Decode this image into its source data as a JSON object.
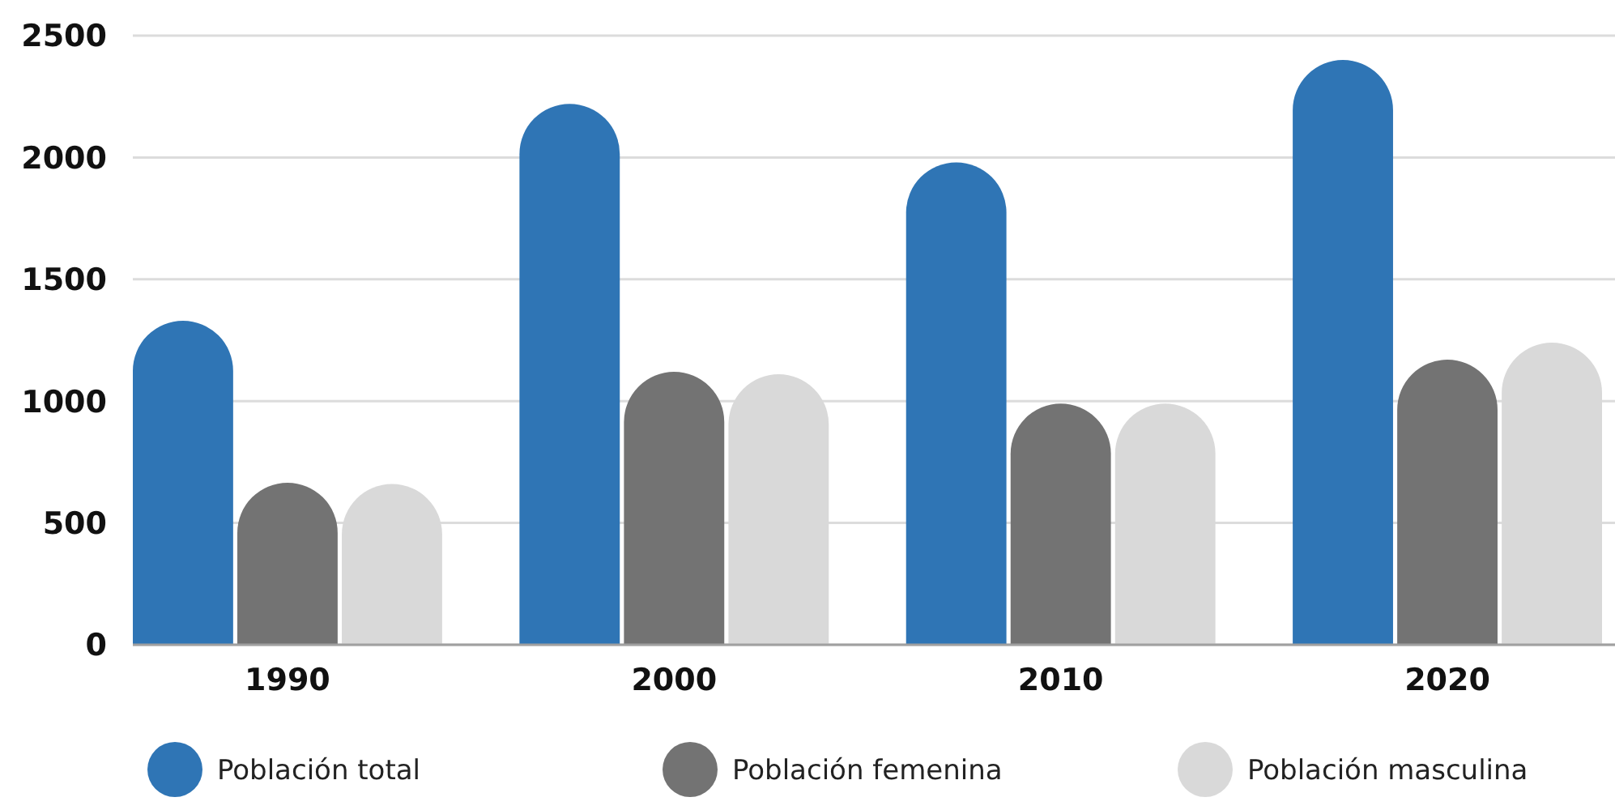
{
  "chart_data": {
    "type": "bar",
    "categories": [
      "1990",
      "2000",
      "2010",
      "2020"
    ],
    "series": [
      {
        "name": "Población total",
        "color": "#2f75b5",
        "values": [
          1330,
          2220,
          1980,
          2400
        ]
      },
      {
        "name": "Población femenina",
        "color": "#737373",
        "values": [
          665,
          1120,
          990,
          1170
        ]
      },
      {
        "name": "Población masculina",
        "color": "#d9d9d9",
        "values": [
          660,
          1110,
          990,
          1240
        ]
      }
    ],
    "ylim": [
      0,
      2500
    ],
    "yticks": [
      0,
      500,
      1000,
      1500,
      2000,
      2500
    ],
    "grid": "y",
    "legend": "bottom"
  }
}
